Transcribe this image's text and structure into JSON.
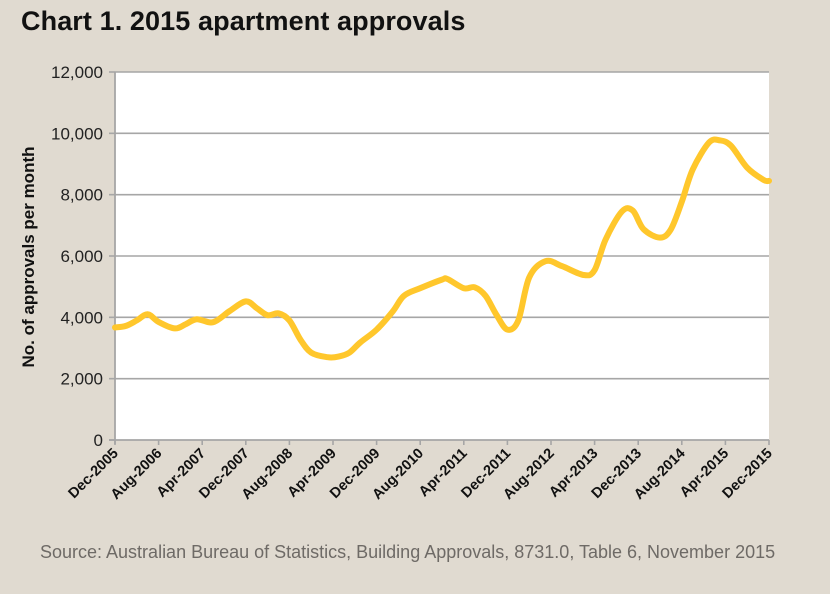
{
  "title": "Chart 1. 2015 apartment approvals",
  "source": "Source: Australian Bureau of Statistics, Building Approvals, 8731.0, Table 6, November 2015",
  "colors": {
    "background": "#e0dad0",
    "plot_background": "#ffffff",
    "line": "#ffc72c",
    "grid": "#a6a6a6",
    "axis": "#a6a6a6",
    "text": "#111111",
    "source_text": "#6e6a66"
  },
  "chart_data": {
    "type": "line",
    "title": "Chart 1. 2015 apartment approvals",
    "xlabel": "",
    "ylabel": "No. of approvals per month",
    "ylim": [
      0,
      12000
    ],
    "yticks": [
      0,
      2000,
      4000,
      6000,
      8000,
      10000,
      12000
    ],
    "ytick_labels": [
      "0",
      "2,000",
      "4,000",
      "6,000",
      "8,000",
      "10,000",
      "12,000"
    ],
    "x_unit": "months since Dec-2005",
    "xlim": [
      0,
      120
    ],
    "xtick_positions": [
      0,
      8,
      16,
      24,
      32,
      40,
      48,
      56,
      64,
      72,
      80,
      88,
      96,
      104,
      112,
      120
    ],
    "xtick_labels": [
      "Dec-2005",
      "Aug-2006",
      "Apr-2007",
      "Dec-2007",
      "Aug-2008",
      "Apr-2009",
      "Dec-2009",
      "Aug-2010",
      "Apr-2011",
      "Dec-2011",
      "Aug-2012",
      "Apr-2013",
      "Dec-2013",
      "Aug-2014",
      "Apr-2015",
      "Dec-2015"
    ],
    "grid": true,
    "legend": "none",
    "series": [
      {
        "name": "Apartment approvals",
        "x": [
          0,
          2,
          4,
          6,
          8,
          11,
          13,
          15,
          18,
          21,
          24,
          26,
          28,
          30,
          32,
          34,
          36,
          39,
          41,
          43,
          45,
          48,
          51,
          53,
          56,
          60,
          61,
          64,
          66,
          68,
          70,
          72,
          74,
          76,
          79,
          82,
          86,
          88,
          90,
          93,
          95,
          97,
          100,
          102,
          104,
          106,
          109,
          111,
          113,
          116,
          119,
          120
        ],
        "values": [
          3670,
          3720,
          3900,
          4100,
          3850,
          3640,
          3780,
          3940,
          3840,
          4200,
          4520,
          4300,
          4070,
          4130,
          3900,
          3280,
          2850,
          2700,
          2720,
          2850,
          3180,
          3600,
          4200,
          4700,
          4950,
          5230,
          5250,
          4950,
          4980,
          4700,
          4080,
          3600,
          3900,
          5300,
          5830,
          5670,
          5380,
          5540,
          6530,
          7450,
          7480,
          6870,
          6600,
          6870,
          7770,
          8820,
          9700,
          9770,
          9600,
          8880,
          8480,
          8450
        ]
      }
    ]
  }
}
